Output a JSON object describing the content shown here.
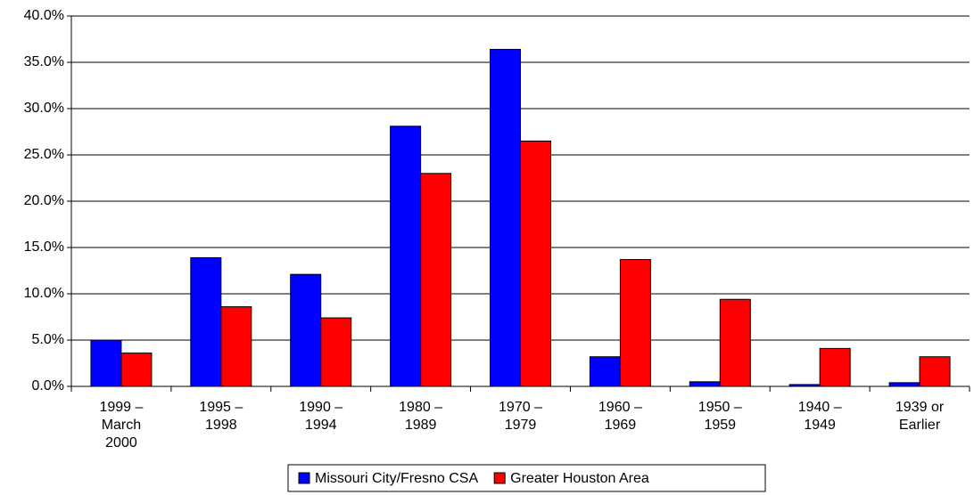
{
  "chart_data": {
    "type": "bar",
    "categories": [
      "1999 – March 2000",
      "1995 – 1998",
      "1990 – 1994",
      "1980 – 1989",
      "1970 – 1979",
      "1960 – 1969",
      "1950 – 1959",
      "1940 – 1949",
      "1939 or Earlier"
    ],
    "series": [
      {
        "name": "Missouri City/Fresno CSA",
        "color": "#0000ff",
        "values": [
          5.0,
          13.9,
          12.1,
          28.1,
          36.4,
          3.2,
          0.5,
          0.2,
          0.4
        ]
      },
      {
        "name": "Greater Houston Area",
        "color": "#ff0000",
        "values": [
          3.6,
          8.6,
          7.4,
          23.0,
          26.5,
          13.7,
          9.4,
          4.1,
          3.2
        ]
      }
    ],
    "ylim": [
      0,
      40
    ],
    "yticks": [
      {
        "value": 0,
        "label": "0.0%"
      },
      {
        "value": 5,
        "label": "5.0%"
      },
      {
        "value": 10,
        "label": "10.0%"
      },
      {
        "value": 15,
        "label": "15.0%"
      },
      {
        "value": 20,
        "label": "20.0%"
      },
      {
        "value": 25,
        "label": "25.0%"
      },
      {
        "value": 30,
        "label": "30.0%"
      },
      {
        "value": 35,
        "label": "35.0%"
      },
      {
        "value": 40,
        "label": "40.0%"
      }
    ],
    "grid": true,
    "legend": "bottom"
  }
}
